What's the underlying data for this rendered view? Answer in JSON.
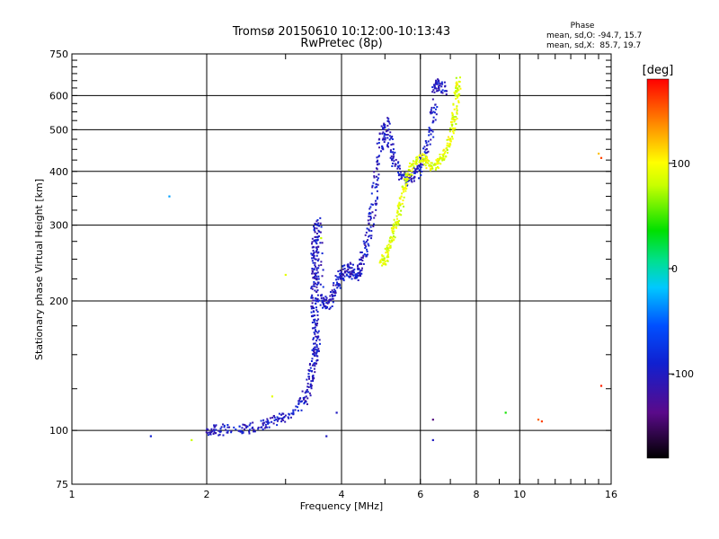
{
  "chart_data": {
    "type": "scatter",
    "title": "Tromsø 20150610 10:12:00-10:13:43",
    "subtitle": "RwPretec (8p)",
    "xlabel": "Frequency [MHz]",
    "ylabel": "Stationary phase Virtual Height [km]",
    "x_scale": "log",
    "y_scale": "log",
    "xlim": [
      1,
      16
    ],
    "ylim": [
      75,
      750
    ],
    "x_ticks": [
      "1",
      "2",
      "4",
      "6",
      "8",
      "10",
      "16"
    ],
    "y_ticks": [
      "75",
      "100",
      "200",
      "300",
      "400",
      "500",
      "600",
      "750"
    ],
    "grid": true,
    "info": {
      "title": "Phase",
      "line_o": "mean, sd,O: -94.7, 15.7",
      "line_x": "mean, sd,X:  85.7, 19.7"
    },
    "colorbar": {
      "label": "[deg]",
      "range": [
        -180,
        180
      ],
      "ticks": [
        "100",
        "0",
        "-100"
      ],
      "tick_values": [
        100,
        0,
        -100
      ]
    },
    "series": [
      {
        "trace": "O-mode",
        "phase_deg": -100,
        "points": [
          [
            2.0,
            100
          ],
          [
            2.1,
            100
          ],
          [
            2.3,
            101
          ],
          [
            2.5,
            101
          ],
          [
            2.7,
            103
          ],
          [
            2.9,
            106
          ],
          [
            3.1,
            110
          ],
          [
            3.3,
            118
          ],
          [
            3.4,
            128
          ],
          [
            3.45,
            140
          ],
          [
            3.5,
            150
          ],
          [
            3.52,
            160
          ],
          [
            3.5,
            175
          ],
          [
            3.48,
            190
          ],
          [
            3.48,
            205
          ],
          [
            3.5,
            225
          ],
          [
            3.5,
            245
          ],
          [
            3.48,
            265
          ],
          [
            3.52,
            285
          ],
          [
            3.55,
            305
          ],
          [
            3.6,
            200
          ],
          [
            3.7,
            196
          ],
          [
            3.8,
            202
          ],
          [
            3.9,
            215
          ],
          [
            4.0,
            230
          ],
          [
            4.1,
            240
          ],
          [
            4.2,
            235
          ],
          [
            4.3,
            228
          ],
          [
            4.4,
            240
          ],
          [
            4.5,
            260
          ],
          [
            4.6,
            290
          ],
          [
            4.7,
            330
          ],
          [
            4.8,
            400
          ],
          [
            4.9,
            470
          ],
          [
            5.0,
            520
          ],
          [
            5.1,
            480
          ],
          [
            5.2,
            430
          ],
          [
            5.4,
            395
          ],
          [
            5.6,
            380
          ],
          [
            5.8,
            390
          ],
          [
            6.0,
            410
          ],
          [
            6.2,
            450
          ],
          [
            6.4,
            530
          ],
          [
            6.5,
            620
          ],
          [
            6.6,
            640
          ],
          [
            6.8,
            620
          ]
        ]
      },
      {
        "trace": "X-mode",
        "phase_deg": 90,
        "points": [
          [
            4.9,
            245
          ],
          [
            5.0,
            250
          ],
          [
            5.1,
            265
          ],
          [
            5.2,
            285
          ],
          [
            5.3,
            300
          ],
          [
            5.4,
            330
          ],
          [
            5.5,
            360
          ],
          [
            5.6,
            390
          ],
          [
            5.8,
            420
          ],
          [
            6.0,
            430
          ],
          [
            6.2,
            420
          ],
          [
            6.4,
            410
          ],
          [
            6.6,
            420
          ],
          [
            6.8,
            440
          ],
          [
            7.0,
            470
          ],
          [
            7.1,
            510
          ],
          [
            7.2,
            560
          ],
          [
            7.25,
            620
          ],
          [
            7.3,
            650
          ]
        ]
      },
      {
        "trace": "scattered",
        "points": [
          [
            1.65,
            350,
            -30
          ],
          [
            1.5,
            97,
            -90
          ],
          [
            1.85,
            95,
            80
          ],
          [
            2.8,
            120,
            90
          ],
          [
            3.0,
            230,
            90
          ],
          [
            3.6,
            280,
            80
          ],
          [
            3.9,
            110,
            -100
          ],
          [
            3.7,
            97,
            -100
          ],
          [
            6.4,
            106,
            -140
          ],
          [
            6.4,
            95,
            -100
          ],
          [
            9.3,
            110,
            40
          ],
          [
            11.0,
            106,
            150
          ],
          [
            11.2,
            105,
            160
          ],
          [
            15.0,
            440,
            120
          ],
          [
            15.2,
            430,
            160
          ],
          [
            15.2,
            127,
            170
          ]
        ]
      }
    ]
  }
}
